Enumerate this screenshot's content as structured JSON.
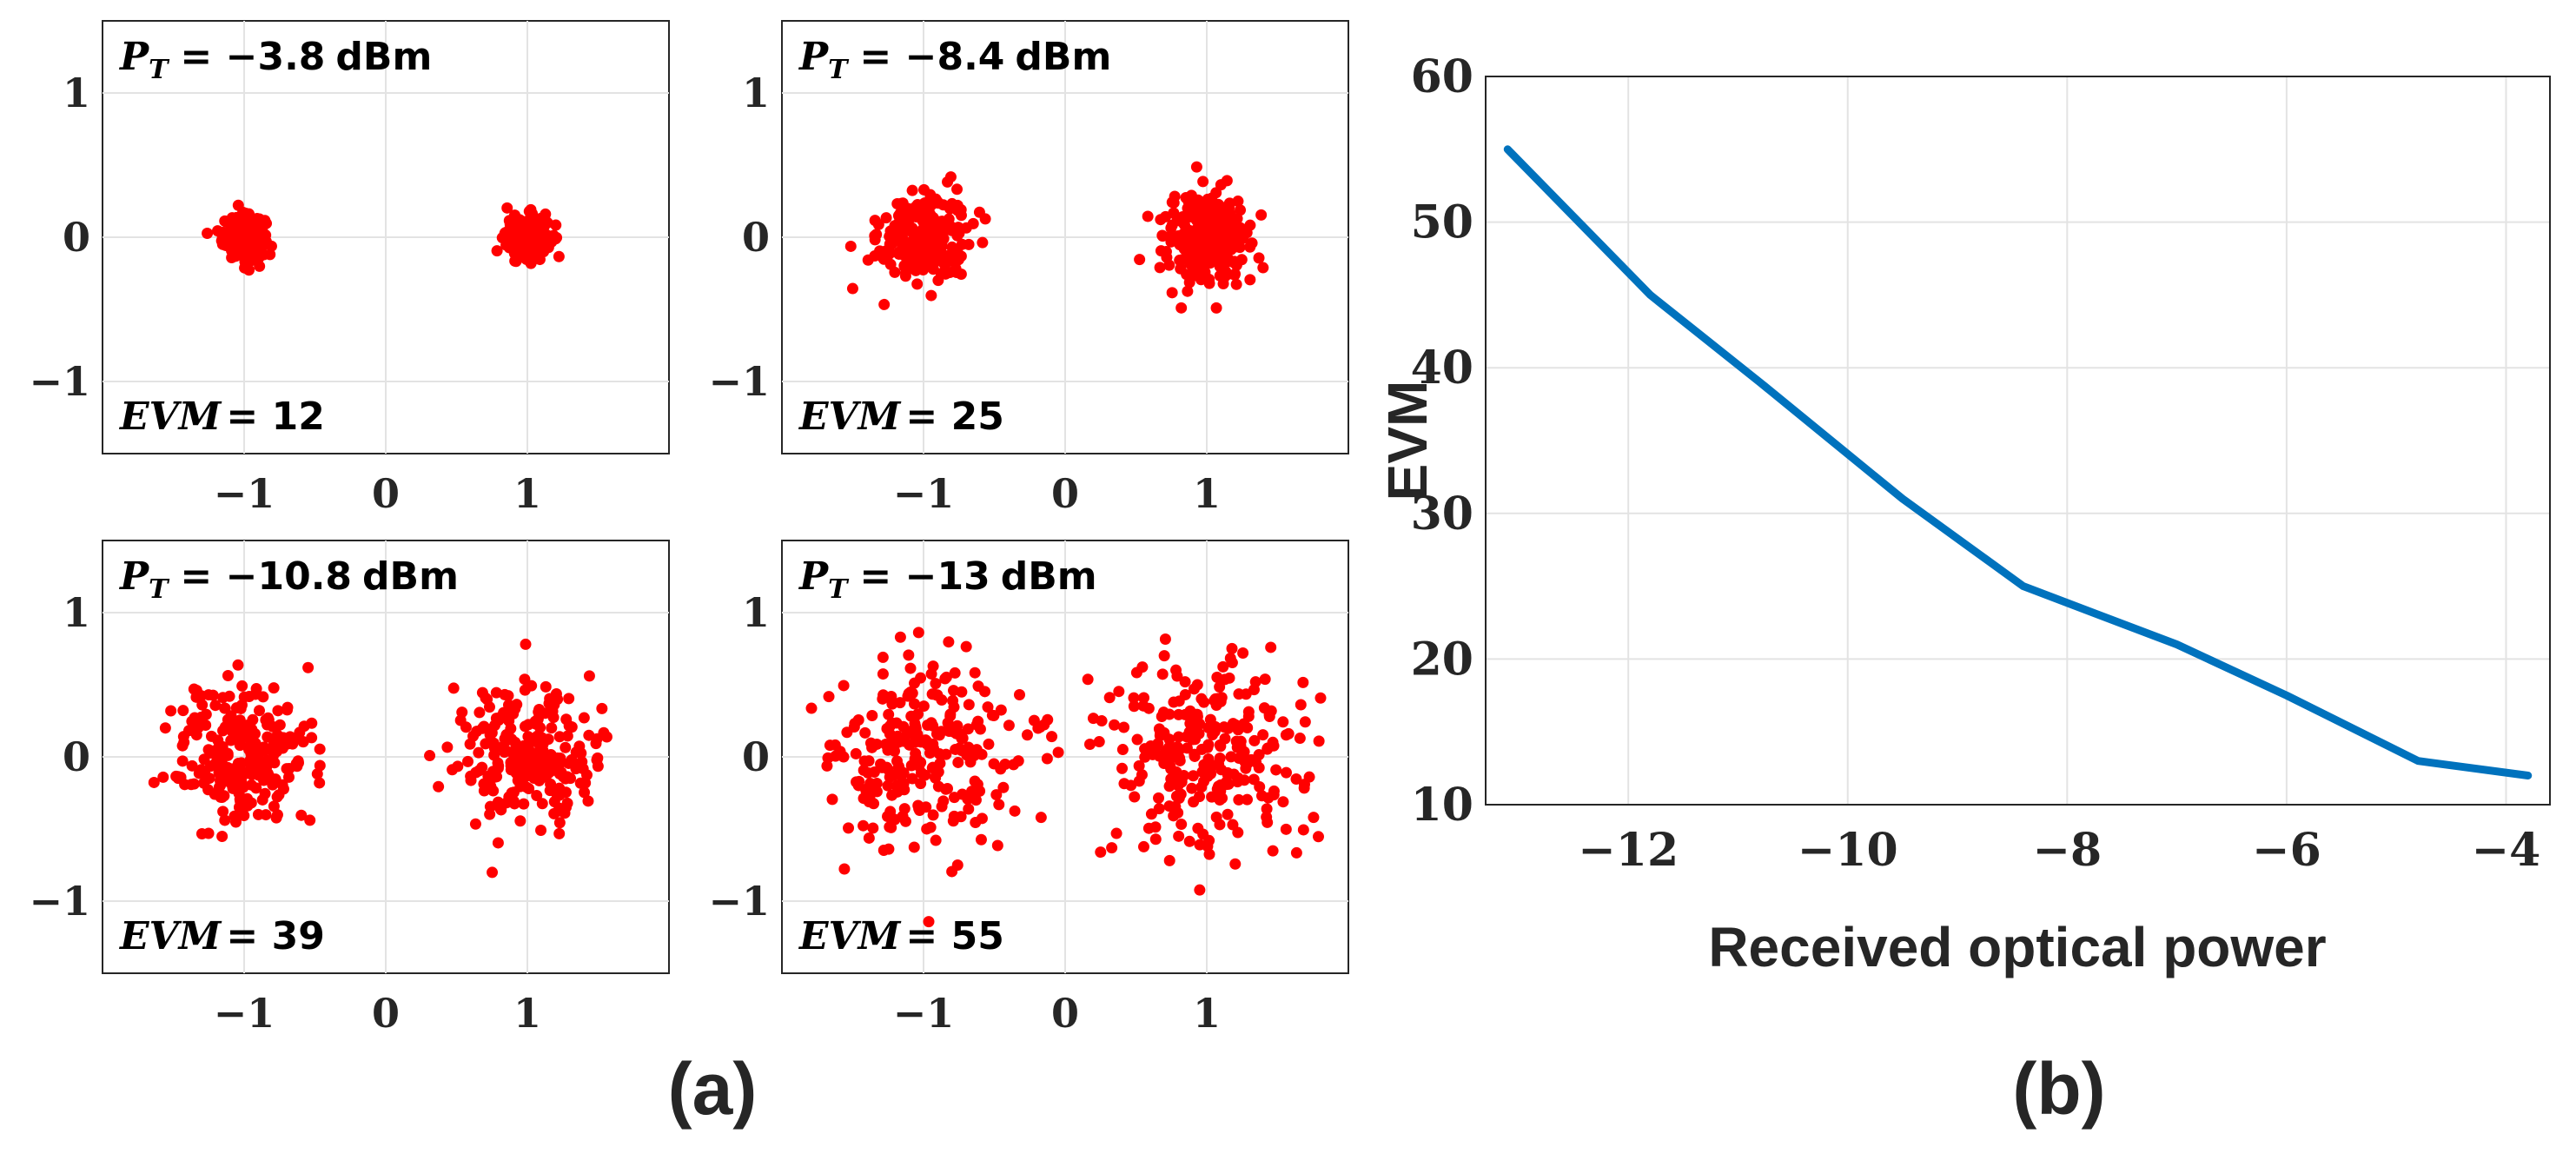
{
  "chart_data": [
    {
      "type": "scatter",
      "panel": "a",
      "subplot": "top-left",
      "power_label": "P_T = −3.8 dBm",
      "power_symbol": "P",
      "power_sub": "T",
      "power_value": "= −3.8",
      "power_unit": "dBm",
      "evm_symbol": "EVM",
      "evm_value": "= 12",
      "evm": 12,
      "spread": 0.12,
      "clusters": [
        -1,
        1
      ],
      "xlim": [
        -2,
        2
      ],
      "ylim": [
        -1.5,
        1.5
      ],
      "xticks": [
        -1,
        0,
        1
      ],
      "yticks": [
        -1,
        0,
        1
      ],
      "xtick_labels": [
        "−1",
        "0",
        "1"
      ],
      "ytick_labels": [
        "−1",
        "0",
        "1"
      ],
      "marker_color": "#ff0000"
    },
    {
      "type": "scatter",
      "panel": "a",
      "subplot": "top-right",
      "power_label": "P_T = −8.4 dBm",
      "power_symbol": "P",
      "power_sub": "T",
      "power_value": "= −8.4",
      "power_unit": "dBm",
      "evm_symbol": "EVM",
      "evm_value": "= 25",
      "evm": 25,
      "spread": 0.25,
      "clusters": [
        -1,
        1
      ],
      "xlim": [
        -2,
        2
      ],
      "ylim": [
        -1.5,
        1.5
      ],
      "xticks": [
        -1,
        0,
        1
      ],
      "yticks": [
        -1,
        0,
        1
      ],
      "xtick_labels": [
        "−1",
        "0",
        "1"
      ],
      "ytick_labels": [
        "−1",
        "0",
        "1"
      ],
      "marker_color": "#ff0000"
    },
    {
      "type": "scatter",
      "panel": "a",
      "subplot": "bottom-left",
      "power_label": "P_T = −10.8 dBm",
      "power_symbol": "P",
      "power_sub": "T",
      "power_value": "= −10.8",
      "power_unit": "dBm",
      "evm_symbol": "EVM",
      "evm_value": "= 39",
      "evm": 39,
      "spread": 0.39,
      "clusters": [
        -1,
        1
      ],
      "xlim": [
        -2,
        2
      ],
      "ylim": [
        -1.5,
        1.5
      ],
      "xticks": [
        -1,
        0,
        1
      ],
      "yticks": [
        -1,
        0,
        1
      ],
      "xtick_labels": [
        "−1",
        "0",
        "1"
      ],
      "ytick_labels": [
        "−1",
        "0",
        "1"
      ],
      "marker_color": "#ff0000"
    },
    {
      "type": "scatter",
      "panel": "a",
      "subplot": "bottom-right",
      "power_label": "P_T = −13 dBm",
      "power_symbol": "P",
      "power_sub": "T",
      "power_value": "= −13",
      "power_unit": "dBm",
      "evm_symbol": "EVM",
      "evm_value": "= 55",
      "evm": 55,
      "spread": 0.55,
      "clusters": [
        -1,
        1
      ],
      "xlim": [
        -2,
        2
      ],
      "ylim": [
        -1.5,
        1.5
      ],
      "xticks": [
        -1,
        0,
        1
      ],
      "yticks": [
        -1,
        0,
        1
      ],
      "xtick_labels": [
        "−1",
        "0",
        "1"
      ],
      "ytick_labels": [
        "−1",
        "0",
        "1"
      ],
      "marker_color": "#ff0000"
    },
    {
      "type": "line",
      "panel": "b",
      "title": "",
      "xlabel": "Received optical power",
      "ylabel": "EVM",
      "x": [
        -13.1,
        -11.8,
        -10.8,
        -9.5,
        -8.4,
        -7.0,
        -6.0,
        -4.8,
        -3.8
      ],
      "y": [
        55,
        45,
        39,
        31,
        25,
        21,
        17.5,
        13,
        12
      ],
      "series": [
        {
          "name": "EVM",
          "color": "#0072bd"
        }
      ],
      "xlim": [
        -13.3,
        -3.6
      ],
      "ylim": [
        10,
        60
      ],
      "xticks": [
        -12,
        -10,
        -8,
        -6,
        -4
      ],
      "yticks": [
        10,
        20,
        30,
        40,
        50,
        60
      ],
      "xtick_labels": [
        "−12",
        "−10",
        "−8",
        "−6",
        "−4"
      ],
      "ytick_labels": [
        "10",
        "20",
        "30",
        "40",
        "50",
        "60"
      ],
      "grid": true
    }
  ],
  "captions": {
    "a": "(a)",
    "b": "(b)"
  }
}
